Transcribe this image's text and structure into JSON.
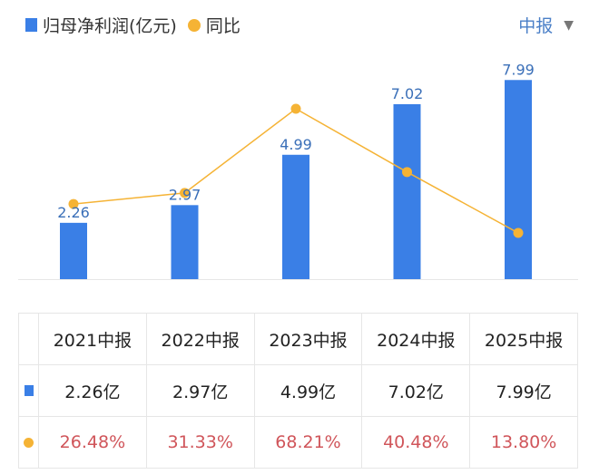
{
  "legend": {
    "bar_label": "归母净利润(亿元)",
    "line_label": "同比"
  },
  "period_selector": {
    "value": "中报",
    "icon": "caret-down-icon"
  },
  "colors": {
    "bar": "#3a7fe6",
    "line": "#f5b335",
    "pct_text": "#d0555a",
    "selector": "#4a7fc7"
  },
  "chart_data": {
    "type": "bar+line",
    "categories": [
      "2021中报",
      "2022中报",
      "2023中报",
      "2024中报",
      "2025中报"
    ],
    "series": [
      {
        "name": "归母净利润(亿元)",
        "type": "bar",
        "values": [
          2.26,
          2.97,
          4.99,
          7.02,
          7.99
        ],
        "labels": [
          "2.26",
          "2.97",
          "4.99",
          "7.02",
          "7.99"
        ]
      },
      {
        "name": "同比",
        "type": "line",
        "values": [
          26.48,
          31.33,
          68.21,
          40.48,
          13.8
        ]
      }
    ]
  },
  "table": {
    "headers": [
      "2021中报",
      "2022中报",
      "2023中报",
      "2024中报",
      "2025中报"
    ],
    "profit_row": [
      "2.26亿",
      "2.97亿",
      "4.99亿",
      "7.02亿",
      "7.99亿"
    ],
    "yoy_row": [
      "26.48%",
      "31.33%",
      "68.21%",
      "40.48%",
      "13.80%"
    ]
  }
}
